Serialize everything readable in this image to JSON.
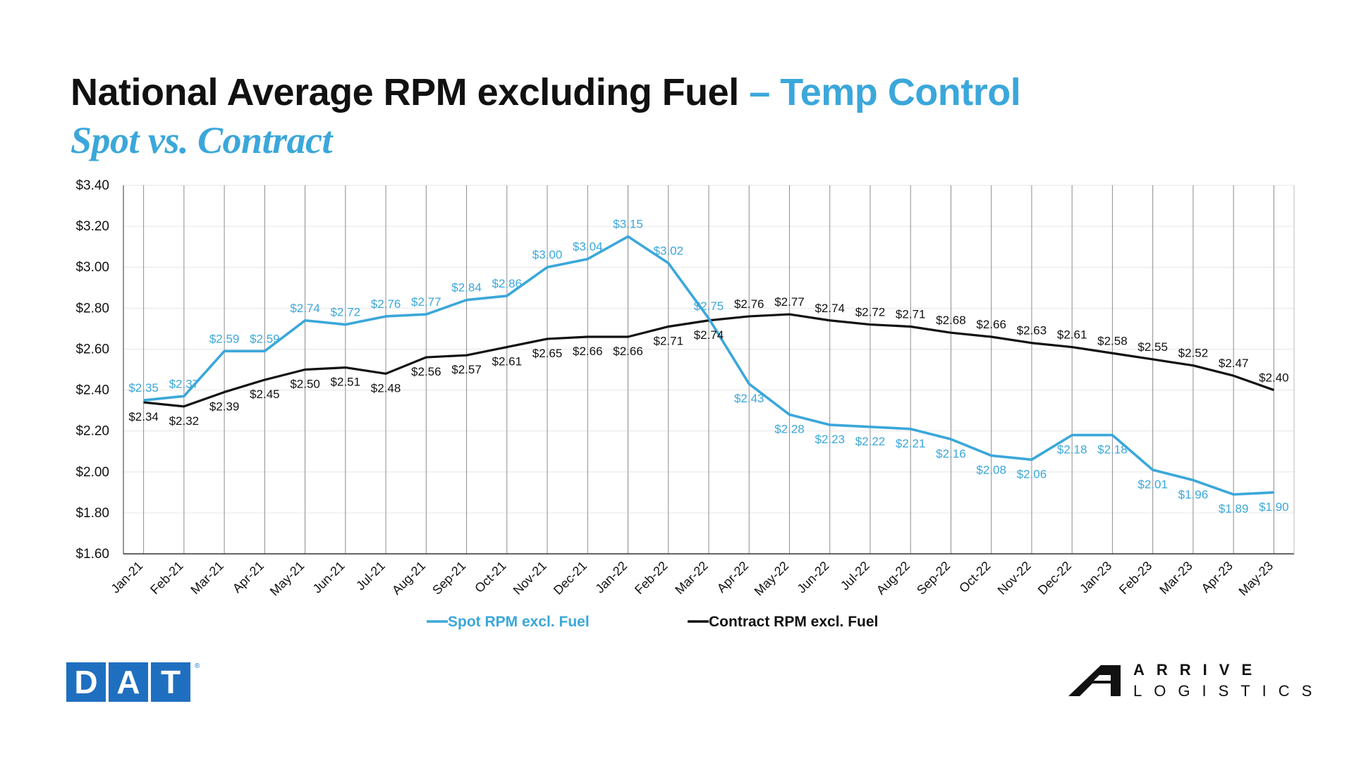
{
  "title": "National Average RPM excluding Fuel",
  "title_accent": "– Temp Control",
  "subtitle": "Spot vs. Contract",
  "colors": {
    "spot": "#3BA7DA",
    "contract": "#111111",
    "grid": "#e6e6e6",
    "vline": "#8c8c8c"
  },
  "logos": {
    "dat": [
      "D",
      "A",
      "T"
    ],
    "arrive_line1": "ARRIVE",
    "arrive_line2": "LOGISTICS"
  },
  "chart_data": {
    "type": "line",
    "categories": [
      "Jan-21",
      "Feb-21",
      "Mar-21",
      "Apr-21",
      "May-21",
      "Jun-21",
      "Jul-21",
      "Aug-21",
      "Sep-21",
      "Oct-21",
      "Nov-21",
      "Dec-21",
      "Jan-22",
      "Feb-22",
      "Mar-22",
      "Apr-22",
      "May-22",
      "Jun-22",
      "Jul-22",
      "Aug-22",
      "Sep-22",
      "Oct-22",
      "Nov-22",
      "Dec-22",
      "Jan-23",
      "Feb-23",
      "Mar-23",
      "Apr-23",
      "May-23"
    ],
    "series": [
      {
        "name": "Spot RPM excl. Fuel",
        "values": [
          2.35,
          2.37,
          2.59,
          2.59,
          2.74,
          2.72,
          2.76,
          2.77,
          2.84,
          2.86,
          3.0,
          3.04,
          3.15,
          3.02,
          2.75,
          2.43,
          2.28,
          2.23,
          2.22,
          2.21,
          2.16,
          2.08,
          2.06,
          2.18,
          2.18,
          2.01,
          1.96,
          1.89,
          1.9
        ]
      },
      {
        "name": "Contract RPM excl. Fuel",
        "values": [
          2.34,
          2.32,
          2.39,
          2.45,
          2.5,
          2.51,
          2.48,
          2.56,
          2.57,
          2.61,
          2.65,
          2.66,
          2.66,
          2.71,
          2.74,
          2.76,
          2.77,
          2.74,
          2.72,
          2.71,
          2.68,
          2.66,
          2.63,
          2.61,
          2.58,
          2.55,
          2.52,
          2.47,
          2.4
        ]
      }
    ],
    "ylim": [
      1.6,
      3.4
    ],
    "yticks": [
      "$1.60",
      "$1.80",
      "$2.00",
      "$2.20",
      "$2.40",
      "$2.60",
      "$2.80",
      "$3.00",
      "$3.20",
      "$3.40"
    ],
    "legend": "bottom",
    "grid": true,
    "currency_prefix": "$"
  }
}
